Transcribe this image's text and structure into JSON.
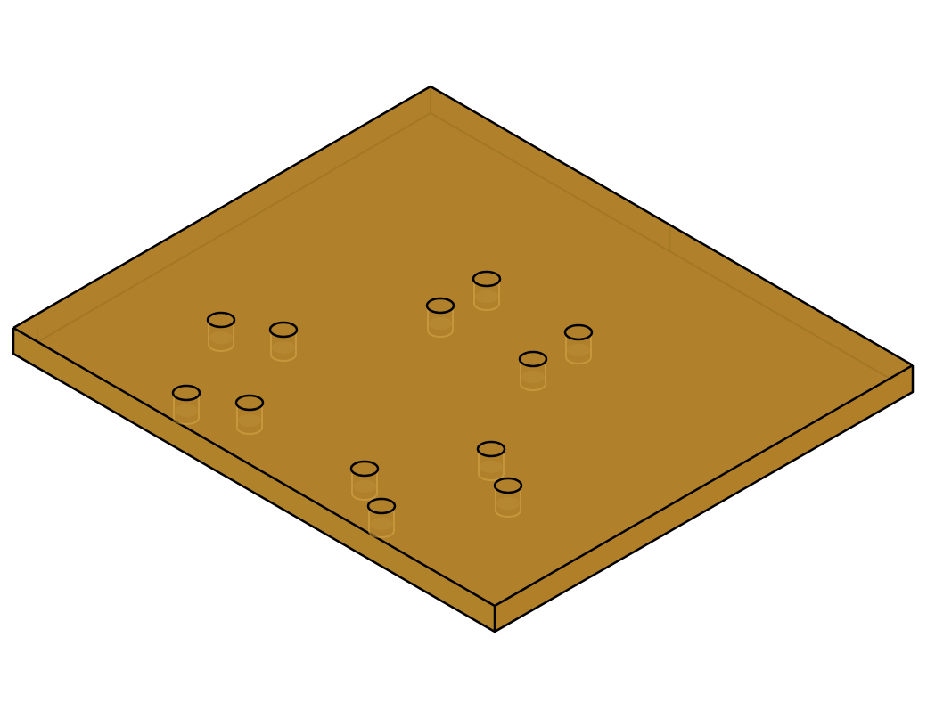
{
  "model": {
    "name": "",
    "colors": {
      "top_face": "#B0812A",
      "left_face": "#B0822A",
      "right_face": "#B17F28",
      "inner_edge": "#9A7020",
      "outline": "#000000",
      "background": "#FFFFFF"
    },
    "hole_count": 12,
    "holes": [
      {
        "id": "hole-1"
      },
      {
        "id": "hole-2"
      },
      {
        "id": "hole-3"
      },
      {
        "id": "hole-4"
      },
      {
        "id": "hole-5"
      },
      {
        "id": "hole-6"
      },
      {
        "id": "hole-7"
      },
      {
        "id": "hole-8"
      },
      {
        "id": "hole-9"
      },
      {
        "id": "hole-10"
      },
      {
        "id": "hole-11"
      },
      {
        "id": "hole-12"
      }
    ]
  }
}
